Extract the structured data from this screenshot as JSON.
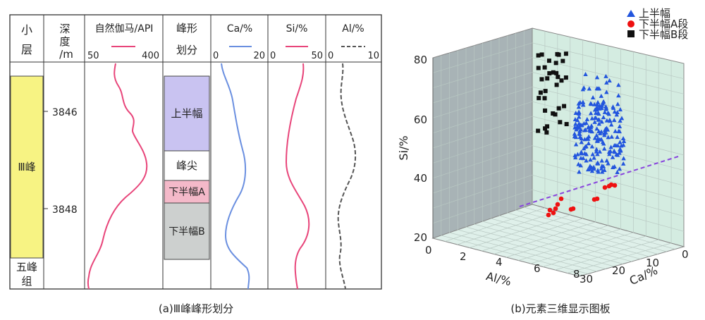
{
  "left_panel": {
    "caption": "(a)Ⅲ峰峰形划分",
    "headers": {
      "layer": [
        "小",
        "层"
      ],
      "depth": [
        "深",
        "度",
        "/m"
      ],
      "gamma": "自然伽马/API",
      "shape": [
        "峰形",
        "划分"
      ],
      "ca": "Ca/%",
      "si": "Si/%",
      "al": "Al/%"
    },
    "scales": {
      "gamma": [
        "50",
        "400"
      ],
      "ca": [
        "0",
        "20"
      ],
      "si": [
        "0",
        "50"
      ],
      "al": [
        "0",
        "10"
      ]
    },
    "depth_ticks": [
      "3846",
      "3848"
    ],
    "layers": [
      {
        "label": "Ⅲ峰",
        "color": "#f7f383"
      },
      {
        "label": "五峰组",
        "color": "#ffffff"
      }
    ],
    "shape_zones": [
      {
        "label": "上半幅",
        "color": "#c9c3f1"
      },
      {
        "label": "峰尖",
        "color": "#ffffff"
      },
      {
        "label": "下半幅A",
        "color": "#f4b9c9"
      },
      {
        "label": "下半幅B",
        "color": "#cdd0cf"
      }
    ],
    "curve_colors": {
      "gamma": "#e8457a",
      "ca": "#6a8fe0",
      "si": "#e8457a",
      "al": "#555555"
    },
    "chart_data": {
      "type": "line",
      "depth_ticks_m": [
        3846,
        3848
      ],
      "series": [
        {
          "name": "自然伽马/API",
          "xlim": [
            50,
            400
          ]
        },
        {
          "name": "Ca/%",
          "xlim": [
            0,
            20
          ]
        },
        {
          "name": "Si/%",
          "xlim": [
            0,
            50
          ]
        },
        {
          "name": "Al/%",
          "xlim": [
            0,
            10
          ]
        }
      ]
    }
  },
  "right_panel": {
    "caption": "(b)元素三维显示图板",
    "legend": [
      {
        "label": "上半幅",
        "color": "#2255dd",
        "marker": "triangle"
      },
      {
        "label": "下半幅A段",
        "color": "#ee1111",
        "marker": "circle"
      },
      {
        "label": "下半幅B段",
        "color": "#111111",
        "marker": "square"
      }
    ],
    "axes": {
      "si": {
        "label": "Si/%",
        "ticks": [
          "20",
          "40",
          "60",
          "80"
        ]
      },
      "al": {
        "label": "Al/%",
        "ticks": [
          "0",
          "2",
          "4",
          "6",
          "8"
        ]
      },
      "ca": {
        "label": "Ca/%",
        "ticks": [
          "0",
          "10",
          "20",
          "30"
        ]
      }
    },
    "divider_color": "#8844dd",
    "chart_data": {
      "type": "scatter",
      "xlabel": "Al/%",
      "ylabel": "Si/%",
      "zlabel": "Ca/%",
      "xlim": [
        0,
        8
      ],
      "ylim": [
        20,
        80
      ],
      "zlim": [
        0,
        30
      ],
      "series": [
        {
          "name": "上半幅",
          "count": 220
        },
        {
          "name": "下半幅A段",
          "count": 14
        },
        {
          "name": "下半幅B段",
          "count": 34
        }
      ]
    }
  }
}
